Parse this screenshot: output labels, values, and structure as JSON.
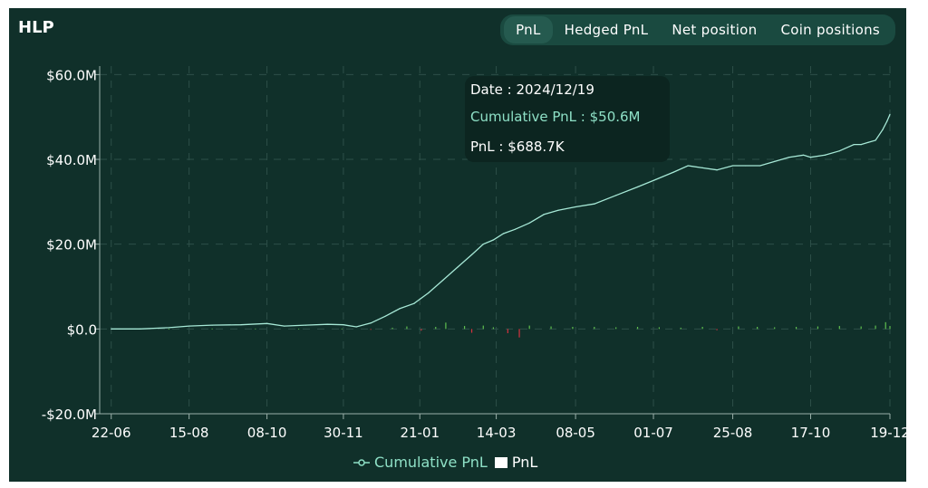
{
  "header": {
    "title": "HLP"
  },
  "tabs": [
    {
      "label": "PnL",
      "active": true
    },
    {
      "label": "Hedged PnL",
      "active": false
    },
    {
      "label": "Net position",
      "active": false
    },
    {
      "label": "Coin positions",
      "active": false
    }
  ],
  "tooltip": {
    "date": "Date : 2024/12/19",
    "cumulative": "Cumulative PnL : $50.6M",
    "pnl": "PnL : $688.7K"
  },
  "colors": {
    "cumulative": "#a6e8d6",
    "pnl_positive": "#5fbf4f",
    "pnl_negative": "#d4323f",
    "background": "#10302a"
  },
  "chart_data": {
    "type": "line",
    "y_tick_labels": [
      "$60.0M",
      "$40.0M",
      "$20.0M",
      "$0.0",
      "-$20.0M"
    ],
    "y_ticks": [
      60,
      40,
      20,
      0,
      -20
    ],
    "ylim": [
      -20,
      62
    ],
    "x_tick_labels": [
      "22-06",
      "15-08",
      "08-10",
      "30-11",
      "21-01",
      "14-03",
      "08-05",
      "01-07",
      "25-08",
      "17-10",
      "19-12"
    ],
    "x_ticks": [
      0,
      54,
      108,
      161,
      214,
      267,
      322,
      376,
      431,
      485,
      540
    ],
    "xlim": [
      -8,
      540
    ],
    "grid": true,
    "legend_position": "bottom",
    "series": [
      {
        "name": "Cumulative PnL",
        "kind": "line",
        "x": [
          0,
          20,
          40,
          54,
          70,
          90,
          108,
          120,
          135,
          150,
          161,
          170,
          180,
          190,
          200,
          210,
          220,
          230,
          240,
          250,
          258,
          265,
          272,
          280,
          290,
          300,
          310,
          322,
          335,
          350,
          365,
          376,
          390,
          400,
          410,
          420,
          431,
          440,
          450,
          460,
          470,
          480,
          485,
          495,
          505,
          515,
          520,
          525,
          530,
          535,
          538,
          540
        ],
        "values": [
          0,
          0,
          0.3,
          0.7,
          0.9,
          1.0,
          1.3,
          0.7,
          0.9,
          1.1,
          1.0,
          0.5,
          1.4,
          3.0,
          4.8,
          6.0,
          8.5,
          11.5,
          14.5,
          17.5,
          20.0,
          21.0,
          22.5,
          23.5,
          25.0,
          27.0,
          28.0,
          28.8,
          29.5,
          31.5,
          33.5,
          35.0,
          37.0,
          38.5,
          38.0,
          37.5,
          38.5,
          38.5,
          38.5,
          39.5,
          40.5,
          41.0,
          40.5,
          41.0,
          42.0,
          43.5,
          43.5,
          44.0,
          44.5,
          47.0,
          49.0,
          50.6
        ]
      },
      {
        "name": "PnL",
        "kind": "bar",
        "x": [
          10,
          40,
          70,
          100,
          130,
          160,
          180,
          195,
          205,
          215,
          225,
          232,
          245,
          250,
          258,
          265,
          275,
          283,
          290,
          305,
          320,
          335,
          350,
          365,
          380,
          395,
          410,
          420,
          435,
          448,
          460,
          475,
          490,
          505,
          520,
          530,
          537,
          540
        ],
        "values": [
          0.05,
          0.05,
          0.1,
          0.1,
          0.08,
          0.1,
          -0.2,
          0.3,
          0.6,
          -0.4,
          0.5,
          1.5,
          0.7,
          -0.9,
          0.8,
          0.4,
          -1.0,
          -2.0,
          0.8,
          0.6,
          0.5,
          0.5,
          0.4,
          0.5,
          0.4,
          0.3,
          0.5,
          -0.3,
          0.6,
          0.5,
          0.4,
          0.5,
          0.6,
          0.7,
          0.6,
          0.8,
          1.6,
          0.7
        ]
      }
    ]
  }
}
